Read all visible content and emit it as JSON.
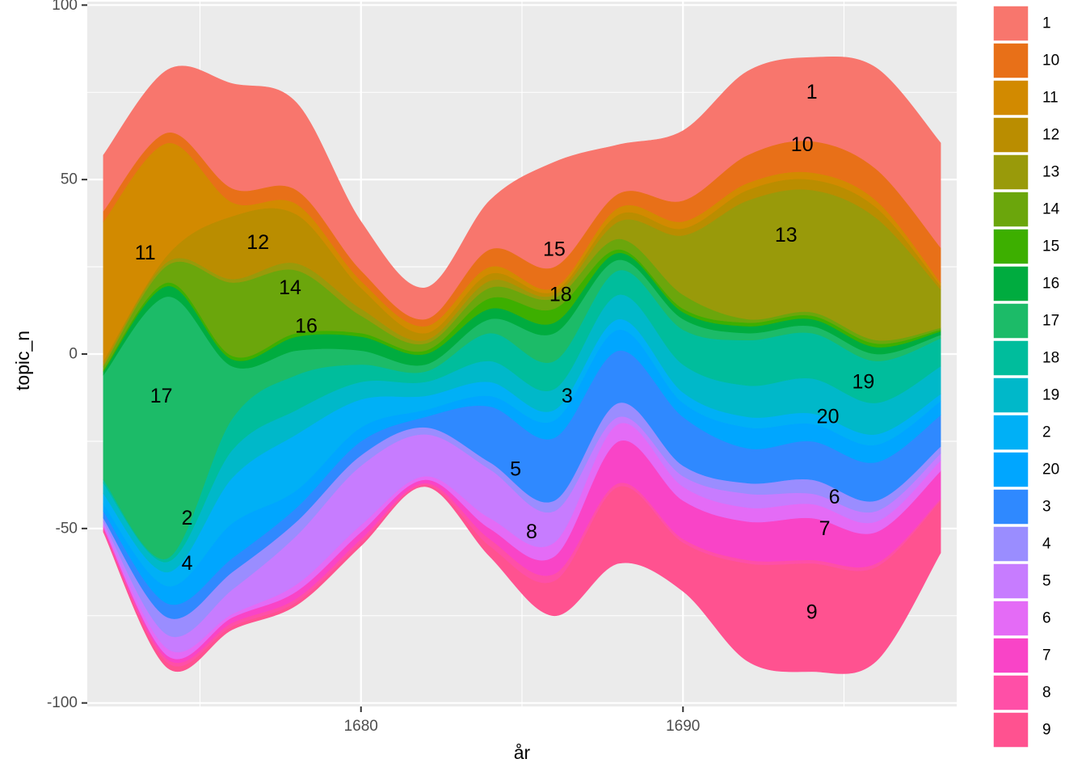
{
  "chart_data": {
    "type": "area",
    "subtype": "streamgraph",
    "xlabel": "år",
    "ylabel": "topic_n",
    "xlim": [
      1671.5,
      1698.5
    ],
    "ylim": [
      -101,
      101
    ],
    "x_ticks": [
      1680,
      1690
    ],
    "y_ticks": [
      -100,
      -50,
      0,
      50,
      100
    ],
    "grid": true,
    "legend_position": "right",
    "stack_order_bottom_to_top": [
      "9",
      "8",
      "7",
      "6",
      "5",
      "4",
      "3",
      "20",
      "2",
      "19",
      "18",
      "17",
      "16",
      "15",
      "14",
      "13",
      "12",
      "11",
      "10",
      "1"
    ],
    "x": [
      1672,
      1674,
      1676,
      1678,
      1680,
      1682,
      1684,
      1686,
      1688,
      1690,
      1692,
      1694,
      1696,
      1698
    ],
    "baseline": [
      -51,
      -90,
      -79,
      -72,
      -55,
      -38,
      -58,
      -75,
      -60,
      -68,
      -88,
      -91,
      -88,
      -57
    ],
    "series": [
      {
        "name": "9",
        "color": "#FF5290",
        "values": [
          0.5,
          1.5,
          1,
          1,
          1,
          0.5,
          3,
          10,
          22,
          14,
          28,
          31,
          27,
          15
        ]
      },
      {
        "name": "8",
        "color": "#FF4FA7",
        "values": [
          0.5,
          1,
          1,
          1,
          1,
          0.5,
          2,
          2,
          1,
          1,
          1,
          1,
          1,
          0.5
        ]
      },
      {
        "name": "7",
        "color": "#F944C7",
        "values": [
          0.5,
          1,
          1.5,
          2,
          2,
          1,
          3,
          5,
          12,
          11,
          11,
          12,
          9,
          8
        ]
      },
      {
        "name": "6",
        "color": "#E46BF6",
        "values": [
          0.5,
          2,
          1,
          2,
          2,
          1,
          3,
          4,
          5,
          4,
          4,
          4,
          3,
          3
        ]
      },
      {
        "name": "5",
        "color": "#C77CFF",
        "values": [
          1,
          4,
          7,
          14,
          17,
          12,
          14,
          9,
          2,
          3,
          4,
          3,
          3,
          2
        ]
      },
      {
        "name": "4",
        "color": "#9A8DFF",
        "values": [
          1,
          5,
          5,
          4,
          3,
          2,
          2,
          3,
          4,
          3,
          3,
          4,
          3,
          2
        ]
      },
      {
        "name": "3",
        "color": "#2F89FF",
        "values": [
          2,
          4,
          4,
          4,
          4,
          3,
          16,
          18,
          15,
          14,
          10,
          11,
          11,
          9
        ]
      },
      {
        "name": "20",
        "color": "#00A6FF",
        "values": [
          2,
          5,
          10,
          5,
          4,
          2,
          3,
          5,
          6,
          4,
          6,
          5,
          5,
          4
        ]
      },
      {
        "name": "2",
        "color": "#00B0F6",
        "values": [
          3,
          4,
          13,
          16,
          8,
          4,
          4,
          3,
          3,
          3,
          3,
          3,
          3,
          2
        ]
      },
      {
        "name": "19",
        "color": "#00B8C9",
        "values": [
          3,
          3,
          8,
          7,
          5,
          4,
          6,
          6,
          7,
          8,
          9,
          10,
          9,
          8
        ]
      },
      {
        "name": "18",
        "color": "#00BD9C",
        "values": [
          1,
          1,
          9,
          10,
          5,
          3,
          8,
          8,
          7,
          10,
          13,
          13,
          12,
          8
        ]
      },
      {
        "name": "17",
        "color": "#1CBB68",
        "values": [
          30,
          75,
          15,
          7,
          4,
          2,
          4,
          8,
          3,
          3,
          2,
          2,
          2,
          1
        ]
      },
      {
        "name": "16",
        "color": "#00AC3F",
        "values": [
          1,
          3,
          2,
          4,
          4,
          3,
          3,
          3,
          2,
          2,
          2,
          2,
          2,
          1
        ]
      },
      {
        "name": "15",
        "color": "#3DAF00",
        "values": [
          0.5,
          1,
          1,
          1,
          1,
          1,
          3,
          4,
          1,
          1,
          1,
          1,
          1,
          0.5
        ]
      },
      {
        "name": "14",
        "color": "#6BA60C",
        "values": [
          1,
          5,
          21,
          18,
          5,
          2,
          3,
          3,
          3,
          4,
          1,
          1,
          1,
          0.5
        ]
      },
      {
        "name": "13",
        "color": "#999A0A",
        "values": [
          0.5,
          1,
          1,
          2,
          2,
          1,
          2,
          1,
          5,
          17,
          34,
          35,
          35,
          11
        ]
      },
      {
        "name": "12",
        "color": "#BA8D00",
        "values": [
          1,
          2,
          18,
          14,
          6,
          2,
          2,
          1,
          2,
          2,
          3,
          3,
          3,
          1
        ]
      },
      {
        "name": "11",
        "color": "#D28A00",
        "values": [
          40,
          32,
          4,
          3,
          2,
          2,
          2,
          1,
          2,
          2,
          2,
          2,
          2,
          1
        ]
      },
      {
        "name": "10",
        "color": "#E87018",
        "values": [
          3,
          3,
          4,
          4,
          3,
          2,
          5,
          6,
          4,
          6,
          8,
          9,
          9,
          10
        ]
      },
      {
        "name": "1",
        "color": "#F8766D",
        "values": [
          16,
          18,
          30,
          25,
          14,
          9,
          14,
          30,
          14,
          20,
          24,
          24,
          29,
          30
        ]
      }
    ],
    "labels": [
      {
        "text": "1",
        "x": 1694,
        "y": 75
      },
      {
        "text": "10",
        "x": 1693.7,
        "y": 60
      },
      {
        "text": "13",
        "x": 1693.2,
        "y": 34
      },
      {
        "text": "11",
        "x": 1673.3,
        "y": 29
      },
      {
        "text": "12",
        "x": 1676.8,
        "y": 32
      },
      {
        "text": "14",
        "x": 1677.8,
        "y": 19
      },
      {
        "text": "16",
        "x": 1678.3,
        "y": 8
      },
      {
        "text": "15",
        "x": 1686,
        "y": 30
      },
      {
        "text": "18",
        "x": 1686.2,
        "y": 17
      },
      {
        "text": "19",
        "x": 1695.6,
        "y": -8
      },
      {
        "text": "20",
        "x": 1694.5,
        "y": -18
      },
      {
        "text": "3",
        "x": 1686.4,
        "y": -12
      },
      {
        "text": "17",
        "x": 1673.8,
        "y": -12
      },
      {
        "text": "5",
        "x": 1684.8,
        "y": -33
      },
      {
        "text": "8",
        "x": 1685.3,
        "y": -51
      },
      {
        "text": "2",
        "x": 1674.6,
        "y": -47
      },
      {
        "text": "4",
        "x": 1674.6,
        "y": -60
      },
      {
        "text": "6",
        "x": 1694.7,
        "y": -41
      },
      {
        "text": "7",
        "x": 1694.4,
        "y": -50
      },
      {
        "text": "9",
        "x": 1694,
        "y": -74
      }
    ],
    "legend_entries": [
      "1",
      "10",
      "11",
      "12",
      "13",
      "14",
      "15",
      "16",
      "17",
      "18",
      "19",
      "2",
      "20",
      "3",
      "4",
      "5",
      "6",
      "7",
      "8",
      "9"
    ]
  }
}
